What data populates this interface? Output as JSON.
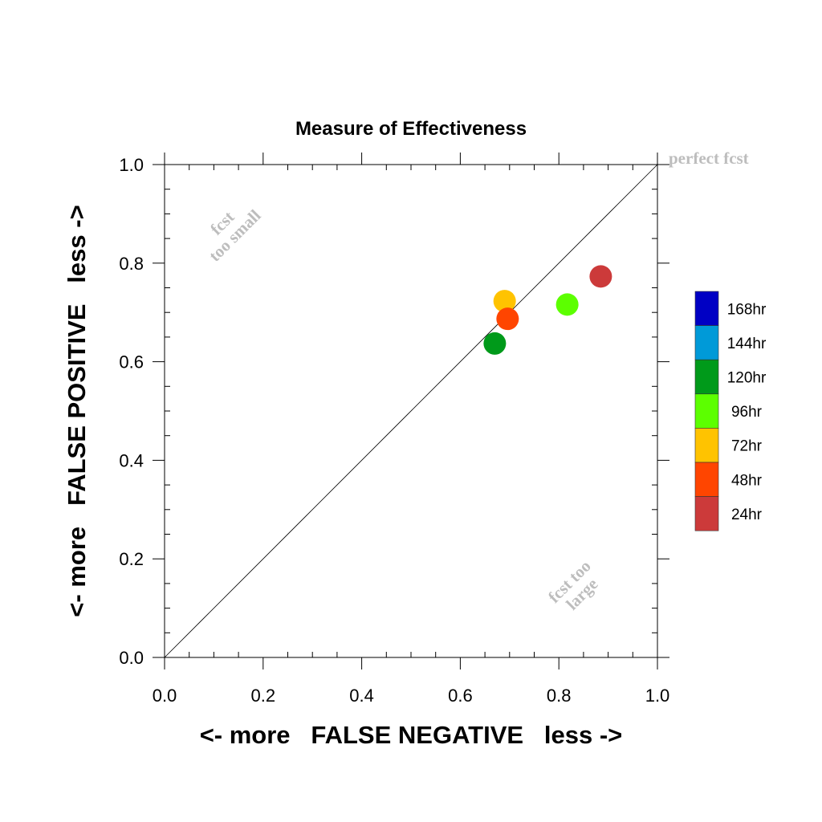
{
  "chart_data": {
    "type": "scatter",
    "title": "Measure of Effectiveness",
    "xlabel": "<- more   FALSE NEGATIVE   less ->",
    "ylabel": "<- more   FALSE POSITIVE   less ->",
    "xlim": [
      0.0,
      1.0
    ],
    "ylim": [
      0.0,
      1.0
    ],
    "x_ticks": [
      "0.0",
      "0.2",
      "0.4",
      "0.6",
      "0.8",
      "1.0"
    ],
    "y_ticks": [
      "0.0",
      "0.2",
      "0.4",
      "0.6",
      "0.8",
      "1.0"
    ],
    "grid": false,
    "reference_line": {
      "from": [
        0.0,
        0.0
      ],
      "to": [
        1.0,
        1.0
      ]
    },
    "annotations": {
      "top_right": "perfect fcst",
      "upper_left_line1": "fcst",
      "upper_left_line2": "too small",
      "lower_right_line1": "fcst too",
      "lower_right_line2": "large"
    },
    "series": [
      {
        "name": "24hr",
        "color": "#cc3a3a",
        "x": 0.885,
        "y": 0.773
      },
      {
        "name": "48hr",
        "color": "#ff4500",
        "x": 0.696,
        "y": 0.687
      },
      {
        "name": "72hr",
        "color": "#ffc300",
        "x": 0.69,
        "y": 0.723
      },
      {
        "name": "96hr",
        "color": "#5cff00",
        "x": 0.817,
        "y": 0.716
      },
      {
        "name": "120hr",
        "color": "#009a1a",
        "x": 0.67,
        "y": 0.637
      }
    ],
    "legend": {
      "placement": "right",
      "entries": [
        {
          "label": "168hr",
          "color": "#0000c4"
        },
        {
          "label": "144hr",
          "color": "#009ad8"
        },
        {
          "label": "120hr",
          "color": "#009a1a"
        },
        {
          "label": "96hr",
          "color": "#5cff00"
        },
        {
          "label": "72hr",
          "color": "#ffc300"
        },
        {
          "label": "48hr",
          "color": "#ff4500"
        },
        {
          "label": "24hr",
          "color": "#cc3a3a"
        }
      ]
    }
  }
}
